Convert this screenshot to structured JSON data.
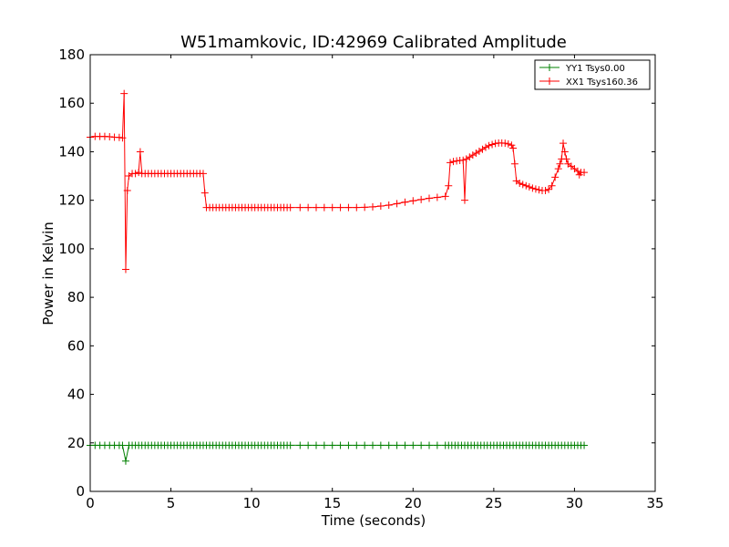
{
  "chart_data": {
    "type": "line",
    "title": "W51mamkovic, ID:42969 Calibrated Amplitude",
    "xlabel": "Time (seconds)",
    "ylabel": "Power in Kelvin",
    "xlim": [
      0,
      35
    ],
    "ylim": [
      0,
      180
    ],
    "xticks": [
      0,
      5,
      10,
      15,
      20,
      25,
      30,
      35
    ],
    "yticks": [
      0,
      20,
      40,
      60,
      80,
      100,
      120,
      140,
      160,
      180
    ],
    "grid": false,
    "legend_position": "top-right",
    "marker": "+",
    "series": [
      {
        "name": "YY1 Tsys0.00",
        "color": "#008000",
        "points": [
          [
            0.0,
            19
          ],
          [
            0.3,
            19
          ],
          [
            0.6,
            19
          ],
          [
            0.9,
            19
          ],
          [
            1.2,
            19
          ],
          [
            1.5,
            19
          ],
          [
            1.8,
            19
          ],
          [
            2.0,
            19
          ],
          [
            2.2,
            12.5
          ],
          [
            2.4,
            19
          ],
          [
            2.6,
            19
          ],
          [
            2.8,
            19
          ],
          [
            3.0,
            19
          ],
          [
            3.2,
            19
          ],
          [
            3.4,
            19
          ],
          [
            3.6,
            19
          ],
          [
            3.8,
            19
          ],
          [
            4.0,
            19
          ],
          [
            4.2,
            19
          ],
          [
            4.4,
            19
          ],
          [
            4.6,
            19
          ],
          [
            4.8,
            19
          ],
          [
            5.0,
            19
          ],
          [
            5.2,
            19
          ],
          [
            5.4,
            19
          ],
          [
            5.6,
            19
          ],
          [
            5.8,
            19
          ],
          [
            6.0,
            19
          ],
          [
            6.2,
            19
          ],
          [
            6.4,
            19
          ],
          [
            6.6,
            19
          ],
          [
            6.8,
            19
          ],
          [
            7.0,
            19
          ],
          [
            7.2,
            19
          ],
          [
            7.4,
            19
          ],
          [
            7.6,
            19
          ],
          [
            7.8,
            19
          ],
          [
            8.0,
            19
          ],
          [
            8.2,
            19
          ],
          [
            8.4,
            19
          ],
          [
            8.6,
            19
          ],
          [
            8.8,
            19
          ],
          [
            9.0,
            19
          ],
          [
            9.2,
            19
          ],
          [
            9.4,
            19
          ],
          [
            9.6,
            19
          ],
          [
            9.8,
            19
          ],
          [
            10.0,
            19
          ],
          [
            10.2,
            19
          ],
          [
            10.4,
            19
          ],
          [
            10.6,
            19
          ],
          [
            10.8,
            19
          ],
          [
            11.0,
            19
          ],
          [
            11.2,
            19
          ],
          [
            11.4,
            19
          ],
          [
            11.6,
            19
          ],
          [
            11.8,
            19
          ],
          [
            12.0,
            19
          ],
          [
            12.2,
            19
          ],
          [
            12.4,
            19
          ],
          [
            13.0,
            19
          ],
          [
            13.5,
            19
          ],
          [
            14.0,
            19
          ],
          [
            14.5,
            19
          ],
          [
            15.0,
            19
          ],
          [
            15.5,
            19
          ],
          [
            16.0,
            19
          ],
          [
            16.5,
            19
          ],
          [
            17.0,
            19
          ],
          [
            17.5,
            19
          ],
          [
            18.0,
            19
          ],
          [
            18.5,
            19
          ],
          [
            19.0,
            19
          ],
          [
            19.5,
            19
          ],
          [
            20.0,
            19
          ],
          [
            20.5,
            19
          ],
          [
            21.0,
            19
          ],
          [
            21.5,
            19
          ],
          [
            22.0,
            19
          ],
          [
            22.2,
            19
          ],
          [
            22.4,
            19
          ],
          [
            22.6,
            19
          ],
          [
            22.8,
            19
          ],
          [
            23.0,
            19
          ],
          [
            23.2,
            19
          ],
          [
            23.4,
            19
          ],
          [
            23.6,
            19
          ],
          [
            23.8,
            19
          ],
          [
            24.0,
            19
          ],
          [
            24.2,
            19
          ],
          [
            24.4,
            19
          ],
          [
            24.6,
            19
          ],
          [
            24.8,
            19
          ],
          [
            25.0,
            19
          ],
          [
            25.2,
            19
          ],
          [
            25.4,
            19
          ],
          [
            25.6,
            19
          ],
          [
            25.8,
            19
          ],
          [
            26.0,
            19
          ],
          [
            26.2,
            19
          ],
          [
            26.4,
            19
          ],
          [
            26.6,
            19
          ],
          [
            26.8,
            19
          ],
          [
            27.0,
            19
          ],
          [
            27.2,
            19
          ],
          [
            27.4,
            19
          ],
          [
            27.6,
            19
          ],
          [
            27.8,
            19
          ],
          [
            28.0,
            19
          ],
          [
            28.2,
            19
          ],
          [
            28.4,
            19
          ],
          [
            28.6,
            19
          ],
          [
            28.8,
            19
          ],
          [
            29.0,
            19
          ],
          [
            29.2,
            19
          ],
          [
            29.4,
            19
          ],
          [
            29.6,
            19
          ],
          [
            29.8,
            19
          ],
          [
            30.0,
            19
          ],
          [
            30.2,
            19
          ],
          [
            30.4,
            19
          ],
          [
            30.6,
            19
          ]
        ]
      },
      {
        "name": "XX1 Tsys160.36",
        "color": "#ff0000",
        "points": [
          [
            0.0,
            146
          ],
          [
            0.3,
            146.3
          ],
          [
            0.6,
            146.3
          ],
          [
            0.9,
            146.3
          ],
          [
            1.2,
            146.2
          ],
          [
            1.5,
            146
          ],
          [
            1.8,
            145.9
          ],
          [
            2.0,
            145.7
          ],
          [
            2.1,
            164
          ],
          [
            2.2,
            91.5
          ],
          [
            2.3,
            124
          ],
          [
            2.4,
            130
          ],
          [
            2.6,
            131
          ],
          [
            2.8,
            131
          ],
          [
            3.0,
            131.5
          ],
          [
            3.1,
            140
          ],
          [
            3.2,
            131
          ],
          [
            3.4,
            131
          ],
          [
            3.6,
            131
          ],
          [
            3.8,
            131
          ],
          [
            4.0,
            131
          ],
          [
            4.2,
            131
          ],
          [
            4.4,
            131
          ],
          [
            4.6,
            131
          ],
          [
            4.8,
            131
          ],
          [
            5.0,
            131
          ],
          [
            5.2,
            131
          ],
          [
            5.4,
            131
          ],
          [
            5.6,
            131
          ],
          [
            5.8,
            131
          ],
          [
            6.0,
            131
          ],
          [
            6.2,
            131
          ],
          [
            6.4,
            131
          ],
          [
            6.6,
            131
          ],
          [
            6.8,
            131
          ],
          [
            7.0,
            131
          ],
          [
            7.1,
            123
          ],
          [
            7.2,
            117
          ],
          [
            7.4,
            117
          ],
          [
            7.6,
            117
          ],
          [
            7.8,
            117
          ],
          [
            8.0,
            117
          ],
          [
            8.2,
            117
          ],
          [
            8.4,
            117
          ],
          [
            8.6,
            117
          ],
          [
            8.8,
            117
          ],
          [
            9.0,
            117
          ],
          [
            9.2,
            117
          ],
          [
            9.4,
            117
          ],
          [
            9.6,
            117
          ],
          [
            9.8,
            117
          ],
          [
            10.0,
            117
          ],
          [
            10.2,
            117
          ],
          [
            10.4,
            117
          ],
          [
            10.6,
            117
          ],
          [
            10.8,
            117
          ],
          [
            11.0,
            117
          ],
          [
            11.2,
            117
          ],
          [
            11.4,
            117
          ],
          [
            11.6,
            117
          ],
          [
            11.8,
            117
          ],
          [
            12.0,
            117
          ],
          [
            12.2,
            117
          ],
          [
            12.4,
            117
          ],
          [
            13.0,
            117
          ],
          [
            13.5,
            117
          ],
          [
            14.0,
            117
          ],
          [
            14.5,
            117
          ],
          [
            15.0,
            117
          ],
          [
            15.5,
            117
          ],
          [
            16.0,
            117
          ],
          [
            16.5,
            117
          ],
          [
            17.0,
            117.1
          ],
          [
            17.5,
            117.3
          ],
          [
            18.0,
            117.6
          ],
          [
            18.5,
            118
          ],
          [
            19.0,
            118.6
          ],
          [
            19.5,
            119.2
          ],
          [
            20.0,
            119.8
          ],
          [
            20.5,
            120.3
          ],
          [
            21.0,
            120.8
          ],
          [
            21.5,
            121.2
          ],
          [
            22.0,
            121.6
          ],
          [
            22.2,
            126
          ],
          [
            22.3,
            135.5
          ],
          [
            22.5,
            136
          ],
          [
            22.7,
            136.2
          ],
          [
            22.9,
            136.4
          ],
          [
            23.1,
            136.5
          ],
          [
            23.2,
            120
          ],
          [
            23.3,
            137
          ],
          [
            23.5,
            137.8
          ],
          [
            23.7,
            138.6
          ],
          [
            23.9,
            139.4
          ],
          [
            24.1,
            140.2
          ],
          [
            24.3,
            141
          ],
          [
            24.5,
            141.8
          ],
          [
            24.7,
            142.5
          ],
          [
            24.9,
            143
          ],
          [
            25.1,
            143.4
          ],
          [
            25.3,
            143.6
          ],
          [
            25.5,
            143.6
          ],
          [
            25.7,
            143.5
          ],
          [
            25.9,
            143.2
          ],
          [
            26.1,
            142.7
          ],
          [
            26.2,
            141.5
          ],
          [
            26.3,
            135
          ],
          [
            26.4,
            128
          ],
          [
            26.6,
            127
          ],
          [
            26.8,
            126.5
          ],
          [
            27.0,
            126
          ],
          [
            27.2,
            125.5
          ],
          [
            27.4,
            125
          ],
          [
            27.6,
            124.6
          ],
          [
            27.8,
            124.3
          ],
          [
            28.0,
            124
          ],
          [
            28.2,
            124
          ],
          [
            28.4,
            124.5
          ],
          [
            28.6,
            126
          ],
          [
            28.8,
            129.5
          ],
          [
            29.0,
            133
          ],
          [
            29.1,
            135
          ],
          [
            29.2,
            137
          ],
          [
            29.3,
            143.5
          ],
          [
            29.4,
            140
          ],
          [
            29.5,
            137
          ],
          [
            29.6,
            135
          ],
          [
            29.8,
            134
          ],
          [
            30.0,
            133
          ],
          [
            30.2,
            132
          ],
          [
            30.3,
            130.5
          ],
          [
            30.4,
            131.5
          ],
          [
            30.6,
            131.5
          ]
        ]
      }
    ]
  }
}
